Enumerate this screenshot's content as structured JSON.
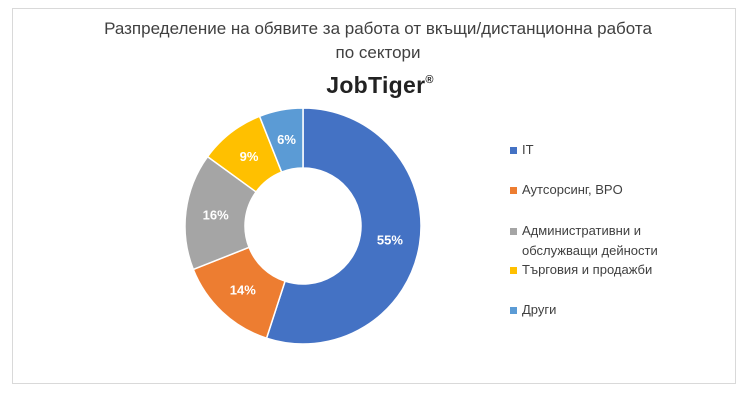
{
  "chart_data": {
    "type": "pie",
    "donut": true,
    "title": "Разпределение на обявите за работа от вкъщи/дистанционна работа по сектори",
    "title_lines": [
      "Разпределение на обявите за работа от вкъщи/дистанционна работа",
      "по сектори"
    ],
    "logo": "JobTiger",
    "logo_mark": "®",
    "categories": [
      "IT",
      "Аутсорсинг, BPO",
      "Административни и обслужващи дейности",
      "Търговия и продажби",
      "Други"
    ],
    "legend_lines": [
      [
        "IT"
      ],
      [
        "Аутсорсинг, BPO"
      ],
      [
        "Административни и",
        "обслужващи дейности"
      ],
      [
        "Търговия и продажби"
      ],
      [
        "Други"
      ]
    ],
    "values": [
      55,
      14,
      16,
      9,
      6
    ],
    "data_labels": [
      "55%",
      "14%",
      "16%",
      "9%",
      "6%"
    ],
    "unit": "%",
    "colors": [
      "#4472c4",
      "#ed7d31",
      "#a5a5a5",
      "#ffc000",
      "#5b9bd5"
    ],
    "legend_position": "right"
  }
}
